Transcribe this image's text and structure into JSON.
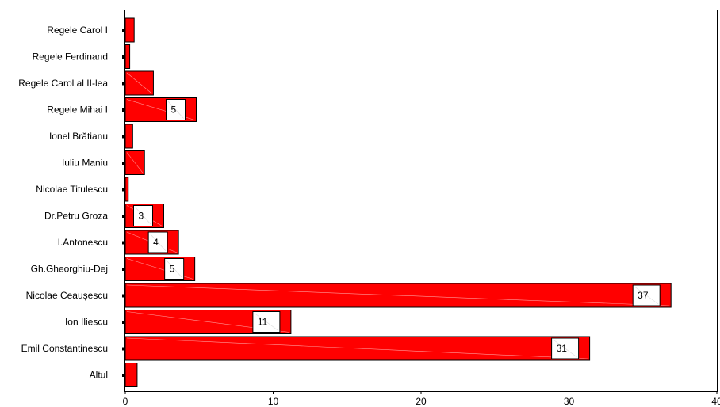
{
  "chart_data": {
    "type": "bar",
    "orientation": "horizontal",
    "categories": [
      "Regele Carol I",
      "Regele Ferdinand",
      "Regele Carol al II-lea",
      "Regele Mihai I",
      "Ionel Brătianu",
      "Iuliu Maniu",
      "Nicolae Titulescu",
      "Dr.Petru Groza",
      "I.Antonescu",
      "Gh.Gheorghiu-Dej",
      "Nicolae Ceaușescu",
      "Ion Iliescu",
      "Emil Constantinescu",
      "Altul"
    ],
    "values": [
      0.6,
      0.3,
      1.9,
      4.8,
      0.5,
      1.3,
      0.2,
      2.6,
      3.6,
      4.7,
      36.9,
      11.2,
      31.4,
      0.8
    ],
    "data_labels": [
      "",
      "",
      "",
      "5",
      "",
      "",
      "",
      "3",
      "4",
      "5",
      "37",
      "11",
      "31",
      ""
    ],
    "xlim": [
      0,
      40
    ],
    "xticks": [
      "0",
      "10",
      "20",
      "30",
      "40"
    ],
    "title": "",
    "xlabel": "",
    "ylabel": "",
    "grid": false,
    "legend": "none",
    "bar_color": "#ff0000",
    "bar_edge_color": "#000000"
  }
}
